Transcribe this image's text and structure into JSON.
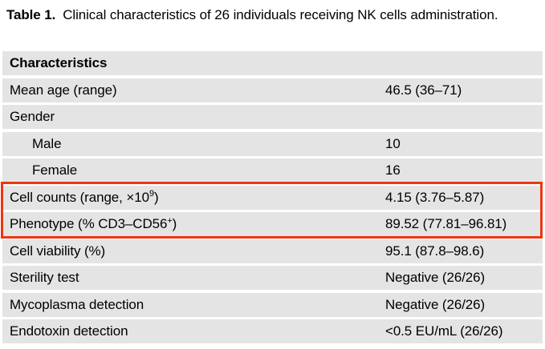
{
  "colors": {
    "row_bg": "#e4e4e4",
    "highlight_border": "#ee3512",
    "text": "#000000"
  },
  "title": {
    "label": "Table 1.",
    "text": "Clinical characteristics of 26 individuals receiving NK cells administration."
  },
  "table": {
    "header": "Characteristics",
    "rows": [
      {
        "label": "Mean age (range)",
        "value": "46.5 (36–71)"
      },
      {
        "label": "Gender",
        "value": ""
      },
      {
        "label": "Male",
        "value": "10",
        "indent": true
      },
      {
        "label": "Female",
        "value": "16",
        "indent": true
      },
      {
        "label": "Cell counts (range, ×10",
        "label_sup": "9",
        "label_end": ")",
        "value": "4.15 (3.76–5.87)",
        "highlighted": true
      },
      {
        "label": "Phenotype (% CD3–CD56",
        "label_sup": "+",
        "label_end": ")",
        "value": "89.52 (77.81–96.81)",
        "highlighted": true
      },
      {
        "label": "Cell viability (%)",
        "value": "95.1 (87.8–98.6)"
      },
      {
        "label": "Sterility test",
        "value": "Negative (26/26)"
      },
      {
        "label": "Mycoplasma detection",
        "value": "Negative (26/26)"
      },
      {
        "label": "Endotoxin detection",
        "value": "<0.5 EU/mL (26/26)"
      }
    ]
  }
}
